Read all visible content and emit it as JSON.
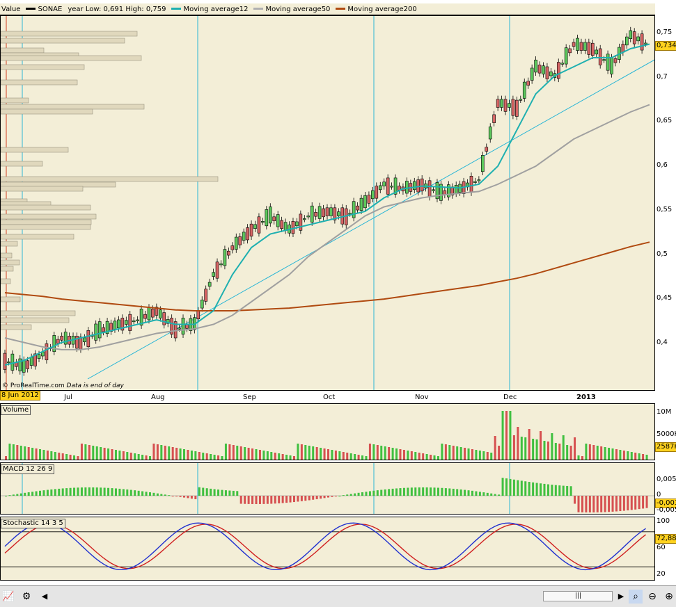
{
  "header": {
    "label": "Value",
    "symbol": "SONAE",
    "range_text": "year Low: 0,691 High: 0,759",
    "legend": [
      {
        "name": "Moving average12",
        "color": "#1fb0b0"
      },
      {
        "name": "Moving average50",
        "color": "#b0b0b0"
      },
      {
        "name": "Moving average200",
        "color": "#b04a10"
      }
    ]
  },
  "price_panel": {
    "footer": "© ProRealTime.com",
    "footer_note": "Data is end of day",
    "last_price": "0,734",
    "date_highlight": "8 Jun 2012",
    "x_labels": [
      "Jul",
      "Aug",
      "Sep",
      "Oct",
      "Nov",
      "Dec",
      "2013"
    ]
  },
  "volume_panel": {
    "title": "Volume",
    "y_labels": [
      "10M",
      "5000K"
    ],
    "last_value": "2587K"
  },
  "macd_panel": {
    "title": "MACD 12 26 9",
    "y_labels": [
      "0,005",
      "0",
      "-0,005"
    ],
    "last_value": "-0,003"
  },
  "stoch_panel": {
    "title": "Stochastic 14 3 5",
    "y_labels": [
      "100",
      "60",
      "20"
    ],
    "last_value": "72,88"
  },
  "chart_data": {
    "type": "candlestick",
    "title": "SONAE",
    "x_range": [
      "2012-06-08",
      "2013-01-31"
    ],
    "ylim": [
      0.37,
      0.76
    ],
    "y_ticks": [
      0.4,
      0.45,
      0.5,
      0.55,
      0.6,
      0.65,
      0.7,
      0.75
    ],
    "y_tick_labels": [
      "0,4",
      "0,45",
      "0,5",
      "0,55",
      "0,6",
      "0,65",
      "0,7",
      "0,75"
    ],
    "grid": false,
    "close_series": [
      {
        "date": "2012-06-08",
        "close": 0.385
      },
      {
        "date": "2012-06-15",
        "close": 0.378
      },
      {
        "date": "2012-06-22",
        "close": 0.392
      },
      {
        "date": "2012-06-29",
        "close": 0.41
      },
      {
        "date": "2012-07-06",
        "close": 0.405
      },
      {
        "date": "2012-07-13",
        "close": 0.418
      },
      {
        "date": "2012-07-20",
        "close": 0.425
      },
      {
        "date": "2012-07-27",
        "close": 0.43
      },
      {
        "date": "2012-08-03",
        "close": 0.44
      },
      {
        "date": "2012-08-10",
        "close": 0.42
      },
      {
        "date": "2012-08-17",
        "close": 0.425
      },
      {
        "date": "2012-08-24",
        "close": 0.48
      },
      {
        "date": "2012-08-31",
        "close": 0.51
      },
      {
        "date": "2012-09-07",
        "close": 0.53
      },
      {
        "date": "2012-09-14",
        "close": 0.545
      },
      {
        "date": "2012-09-21",
        "close": 0.53
      },
      {
        "date": "2012-09-28",
        "close": 0.545
      },
      {
        "date": "2012-10-05",
        "close": 0.55
      },
      {
        "date": "2012-10-12",
        "close": 0.545
      },
      {
        "date": "2012-10-19",
        "close": 0.56
      },
      {
        "date": "2012-10-26",
        "close": 0.58
      },
      {
        "date": "2012-11-02",
        "close": 0.575
      },
      {
        "date": "2012-11-09",
        "close": 0.58
      },
      {
        "date": "2012-11-16",
        "close": 0.57
      },
      {
        "date": "2012-11-23",
        "close": 0.575
      },
      {
        "date": "2012-11-30",
        "close": 0.585
      },
      {
        "date": "2012-12-07",
        "close": 0.67
      },
      {
        "date": "2012-12-14",
        "close": 0.665
      },
      {
        "date": "2012-12-21",
        "close": 0.71
      },
      {
        "date": "2012-12-28",
        "close": 0.7
      },
      {
        "date": "2013-01-04",
        "close": 0.735
      },
      {
        "date": "2013-01-11",
        "close": 0.73
      },
      {
        "date": "2013-01-18",
        "close": 0.71
      },
      {
        "date": "2013-01-25",
        "close": 0.745
      },
      {
        "date": "2013-01-31",
        "close": 0.734
      }
    ],
    "ma12": [
      0.38,
      0.385,
      0.395,
      0.405,
      0.41,
      0.415,
      0.42,
      0.425,
      0.43,
      0.425,
      0.425,
      0.44,
      0.48,
      0.51,
      0.525,
      0.53,
      0.535,
      0.54,
      0.545,
      0.55,
      0.565,
      0.575,
      0.578,
      0.577,
      0.576,
      0.58,
      0.6,
      0.64,
      0.68,
      0.7,
      0.71,
      0.72,
      0.72,
      0.73,
      0.735
    ],
    "ma50": [
      0.41,
      0.405,
      0.4,
      0.397,
      0.397,
      0.4,
      0.405,
      0.41,
      0.415,
      0.418,
      0.42,
      0.425,
      0.435,
      0.45,
      0.465,
      0.48,
      0.5,
      0.515,
      0.53,
      0.545,
      0.555,
      0.56,
      0.565,
      0.568,
      0.57,
      0.572,
      0.58,
      0.59,
      0.6,
      0.615,
      0.63,
      0.64,
      0.65,
      0.66,
      0.668
    ],
    "ma200": [
      0.46,
      0.458,
      0.456,
      0.453,
      0.451,
      0.449,
      0.447,
      0.445,
      0.443,
      0.441,
      0.44,
      0.44,
      0.44,
      0.441,
      0.442,
      0.443,
      0.445,
      0.447,
      0.449,
      0.451,
      0.453,
      0.456,
      0.459,
      0.462,
      0.465,
      0.468,
      0.472,
      0.476,
      0.481,
      0.487,
      0.493,
      0.499,
      0.505,
      0.511,
      0.516
    ]
  }
}
